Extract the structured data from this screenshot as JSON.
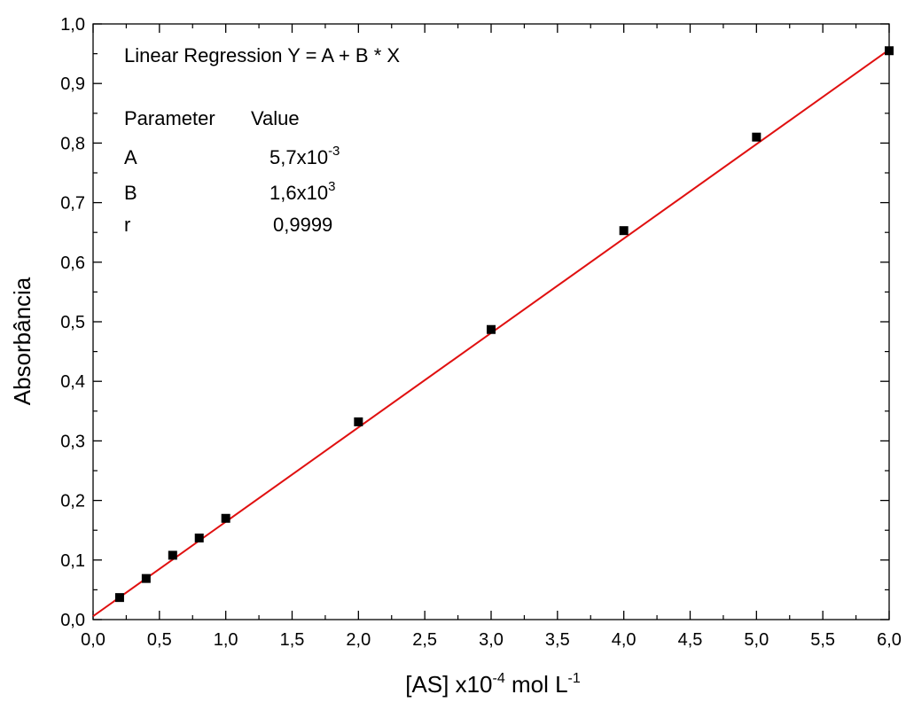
{
  "chart_data": {
    "type": "scatter",
    "xlabel": "[AS] x10",
    "xlabel_exp": "-4",
    "xlabel_unit": " mol L",
    "xlabel_unit_exp": "-1",
    "ylabel": "Absorbância",
    "xlim": [
      0,
      6
    ],
    "ylim": [
      0,
      1
    ],
    "x_ticks": [
      "0,0",
      "0,5",
      "1,0",
      "1,5",
      "2,0",
      "2,5",
      "3,0",
      "3,5",
      "4,0",
      "4,5",
      "5,0",
      "5,5",
      "6,0"
    ],
    "y_ticks": [
      "0,0",
      "0,1",
      "0,2",
      "0,3",
      "0,4",
      "0,5",
      "0,6",
      "0,7",
      "0,8",
      "0,9",
      "1,0"
    ],
    "grid": false,
    "series": [
      {
        "x": [
          0.2,
          0.4,
          0.6,
          0.8,
          1.0,
          2.0,
          3.0,
          4.0,
          5.0,
          6.0
        ],
        "y": [
          0.037,
          0.069,
          0.108,
          0.137,
          0.17,
          0.332,
          0.487,
          0.653,
          0.81,
          0.955
        ],
        "marker": "square",
        "color": "#000000"
      }
    ],
    "fit_line": {
      "intercept": 0.0057,
      "slope": 0.1585,
      "color": "#e01010"
    },
    "annotation": {
      "title": "Linear Regression Y = A + B * X",
      "header_param": "Parameter",
      "header_value": "Value",
      "rows": [
        {
          "param": "A",
          "value": "5,7x10",
          "exp": "-3"
        },
        {
          "param": "B",
          "value": "1,6x10",
          "exp": "3"
        },
        {
          "param": "r",
          "value": "0,9999",
          "exp": ""
        }
      ]
    }
  }
}
